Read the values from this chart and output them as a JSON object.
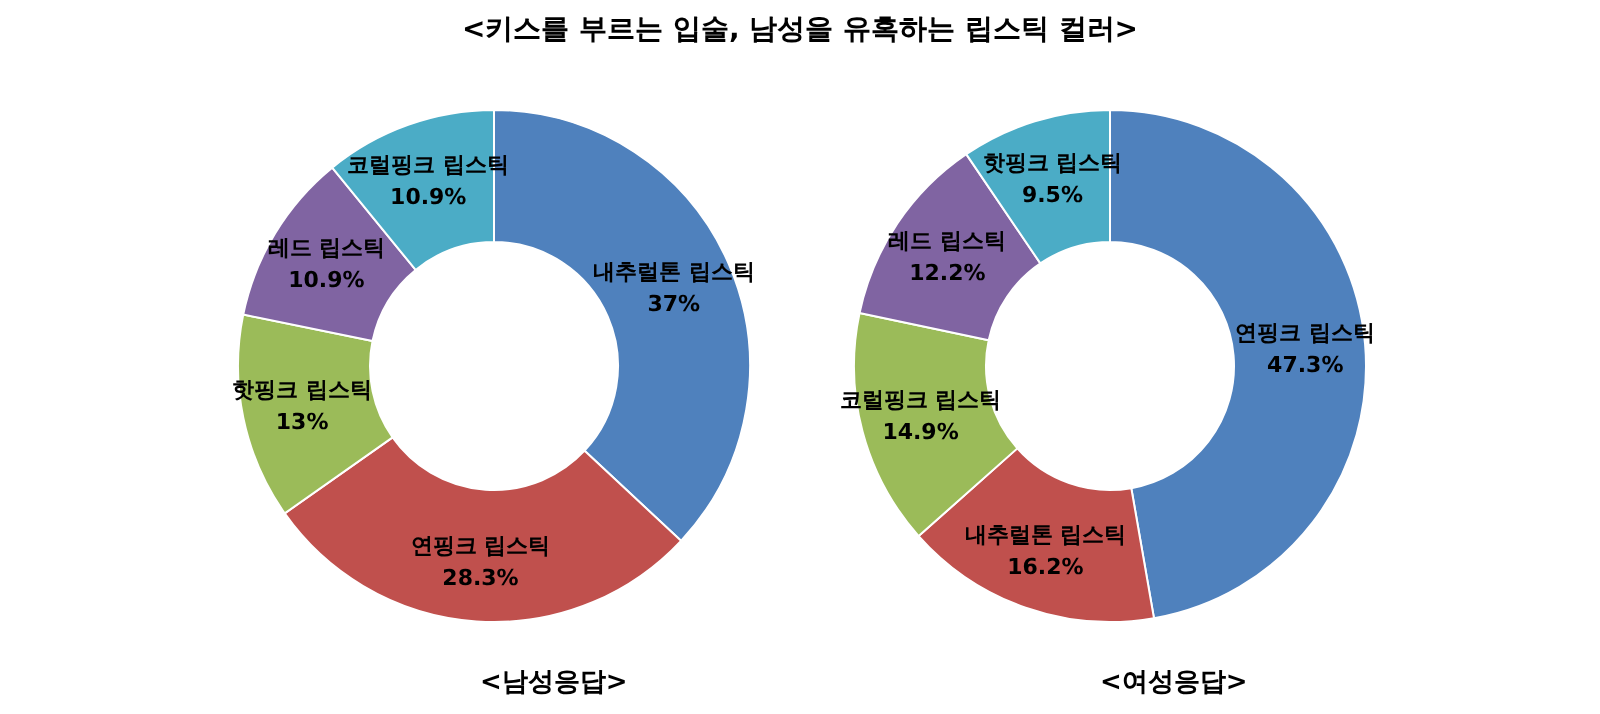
{
  "chart_data": [
    {
      "type": "donut",
      "title": "<키스를 부르는 입술, 남성을 유혹하는 립스틱 컬러>",
      "subtitle": "<남성응답>",
      "categories": [
        "내추럴톤 립스틱",
        "연핑크 립스틱",
        "핫핑크 립스틱",
        "레드 립스틱",
        "코럴핑크 립스틱"
      ],
      "values": [
        37,
        28.3,
        13,
        10.9,
        10.9
      ],
      "value_labels": [
        "37%",
        "28.3%",
        "13%",
        "10.9%",
        "10.9%"
      ],
      "colors": [
        "#4f81bd",
        "#c0504d",
        "#9bbb59",
        "#8064a2",
        "#4bacc6"
      ],
      "legend": false
    },
    {
      "type": "donut",
      "subtitle": "<여성응답>",
      "categories": [
        "연핑크 립스틱",
        "내추럴톤 립스틱",
        "코럴핑크 립스틱",
        "레드 립스틱",
        "핫핑크 립스틱"
      ],
      "values": [
        47.3,
        16.2,
        14.9,
        12.2,
        9.5
      ],
      "value_labels": [
        "47.3%",
        "16.2%",
        "14.9%",
        "12.2%",
        "9.5%"
      ],
      "colors": [
        "#4f81bd",
        "#c0504d",
        "#9bbb59",
        "#8064a2",
        "#4bacc6"
      ],
      "legend": false
    }
  ]
}
